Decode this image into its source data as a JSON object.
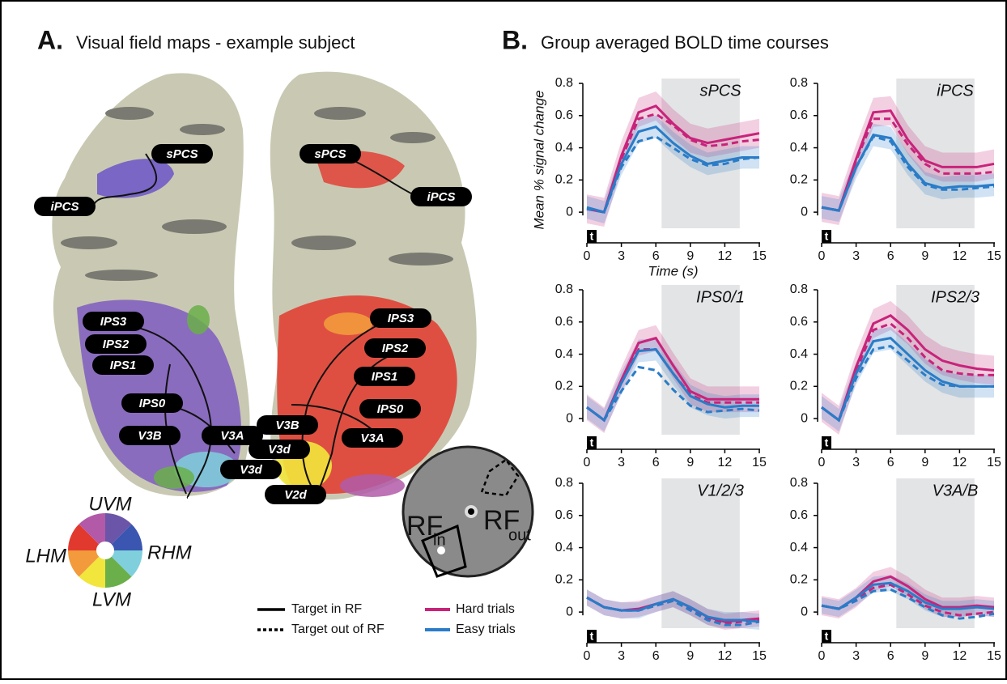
{
  "panel_a": {
    "letter": "A.",
    "title": "Visual field maps - example subject",
    "labels": [
      "sPCS",
      "iPCS",
      "IPS3",
      "IPS2",
      "IPS1",
      "IPS0",
      "V3B",
      "V3A",
      "V3d",
      "sPCS",
      "iPCS",
      "IPS3",
      "IPS2",
      "IPS1",
      "IPS0",
      "V3B",
      "V3d",
      "V3A",
      "V2d"
    ],
    "wheel": [
      "UVM",
      "RHM",
      "LVM",
      "LHM"
    ],
    "rf_in": {
      "main": "RF",
      "sub": "in"
    },
    "rf_out": {
      "main": "RF",
      "sub": "out"
    }
  },
  "panel_b": {
    "letter": "B.",
    "title": "Group averaged BOLD time courses"
  },
  "legend": {
    "solid": "Target in RF",
    "dashed": "Target out of RF",
    "hard": "Hard trials",
    "easy": "Easy trials",
    "hard_color": "#c8237a",
    "easy_color": "#2a7cc7"
  },
  "chart_data": [
    {
      "type": "line",
      "title": "sPCS",
      "ylabel": "Mean % signal change",
      "xlabel": "Time (s)",
      "marker": "t",
      "highlight": [
        6.5,
        13.3
      ],
      "x": [
        0,
        1.5,
        3,
        4.5,
        6,
        7.5,
        9,
        10.5,
        12,
        13.5,
        15
      ],
      "xlim": [
        0,
        15
      ],
      "xticks": [
        0,
        3,
        6,
        9,
        12,
        15
      ],
      "ylim": [
        -0.1,
        0.8
      ],
      "yticks": [
        0,
        0.2,
        0.4,
        0.6,
        0.8
      ],
      "series": [
        {
          "color": "#c8237a",
          "dash": false,
          "error": 0.09,
          "values": [
            0.02,
            0,
            0.35,
            0.62,
            0.66,
            0.55,
            0.46,
            0.43,
            0.45,
            0.47,
            0.49
          ]
        },
        {
          "color": "#c8237a",
          "dash": true,
          "values": [
            0.02,
            0,
            0.33,
            0.58,
            0.61,
            0.54,
            0.45,
            0.41,
            0.42,
            0.44,
            0.45
          ]
        },
        {
          "color": "#2a7cc7",
          "dash": false,
          "error": 0.07,
          "values": [
            0.03,
            0,
            0.3,
            0.5,
            0.53,
            0.43,
            0.35,
            0.3,
            0.32,
            0.34,
            0.34
          ]
        },
        {
          "color": "#2a7cc7",
          "dash": true,
          "values": [
            0.02,
            0,
            0.28,
            0.44,
            0.47,
            0.4,
            0.33,
            0.29,
            0.3,
            0.33,
            0.34
          ]
        }
      ]
    },
    {
      "type": "line",
      "title": "iPCS",
      "marker": "t",
      "highlight": [
        6.5,
        13.3
      ],
      "x": [
        0,
        1.5,
        3,
        4.5,
        6,
        7.5,
        9,
        10.5,
        12,
        13.5,
        15
      ],
      "xlim": [
        0,
        15
      ],
      "xticks": [
        0,
        3,
        6,
        9,
        12,
        15
      ],
      "ylim": [
        -0.1,
        0.8
      ],
      "yticks": [
        0,
        0.2,
        0.4,
        0.6,
        0.8
      ],
      "series": [
        {
          "color": "#c8237a",
          "dash": false,
          "error": 0.09,
          "values": [
            0.03,
            0.01,
            0.33,
            0.62,
            0.63,
            0.45,
            0.32,
            0.28,
            0.28,
            0.28,
            0.3
          ]
        },
        {
          "color": "#c8237a",
          "dash": true,
          "values": [
            0.03,
            0.01,
            0.32,
            0.58,
            0.58,
            0.42,
            0.3,
            0.24,
            0.24,
            0.24,
            0.25
          ]
        },
        {
          "color": "#2a7cc7",
          "dash": false,
          "error": 0.07,
          "values": [
            0.03,
            0.01,
            0.28,
            0.48,
            0.46,
            0.3,
            0.18,
            0.15,
            0.16,
            0.16,
            0.17
          ]
        },
        {
          "color": "#2a7cc7",
          "dash": true,
          "values": [
            0.03,
            0.01,
            0.28,
            0.47,
            0.44,
            0.28,
            0.17,
            0.14,
            0.14,
            0.15,
            0.16
          ]
        }
      ]
    },
    {
      "type": "line",
      "title": "IPS0/1",
      "marker": "t",
      "highlight": [
        6.5,
        13.3
      ],
      "x": [
        0,
        1.5,
        3,
        4.5,
        6,
        7.5,
        9,
        10.5,
        12,
        13.5,
        15
      ],
      "xlim": [
        0,
        15
      ],
      "xticks": [
        0,
        3,
        6,
        9,
        12,
        15
      ],
      "ylim": [
        -0.1,
        0.8
      ],
      "yticks": [
        0,
        0.2,
        0.4,
        0.6,
        0.8
      ],
      "series": [
        {
          "color": "#c8237a",
          "dash": false,
          "error": 0.08,
          "values": [
            0.07,
            -0.01,
            0.24,
            0.47,
            0.5,
            0.33,
            0.17,
            0.12,
            0.12,
            0.12,
            0.12
          ]
        },
        {
          "color": "#c8237a",
          "dash": true,
          "values": [
            0.07,
            -0.01,
            0.22,
            0.43,
            0.43,
            0.28,
            0.15,
            0.1,
            0.1,
            0.1,
            0.1
          ]
        },
        {
          "color": "#2a7cc7",
          "dash": false,
          "error": 0.07,
          "values": [
            0.07,
            -0.01,
            0.22,
            0.42,
            0.43,
            0.28,
            0.14,
            0.09,
            0.07,
            0.08,
            0.08
          ]
        },
        {
          "color": "#2a7cc7",
          "dash": true,
          "values": [
            0.07,
            -0.01,
            0.17,
            0.32,
            0.3,
            0.18,
            0.08,
            0.04,
            0.05,
            0.06,
            0.05
          ]
        }
      ]
    },
    {
      "type": "line",
      "title": "IPS2/3",
      "marker": "t",
      "highlight": [
        6.5,
        13.3
      ],
      "x": [
        0,
        1.5,
        3,
        4.5,
        6,
        7.5,
        9,
        10.5,
        12,
        13.5,
        15
      ],
      "xlim": [
        0,
        15
      ],
      "xticks": [
        0,
        3,
        6,
        9,
        12,
        15
      ],
      "ylim": [
        -0.1,
        0.8
      ],
      "yticks": [
        0,
        0.2,
        0.4,
        0.6,
        0.8
      ],
      "series": [
        {
          "color": "#c8237a",
          "dash": false,
          "error": 0.09,
          "values": [
            0.07,
            -0.01,
            0.32,
            0.59,
            0.64,
            0.55,
            0.43,
            0.36,
            0.33,
            0.31,
            0.3
          ]
        },
        {
          "color": "#c8237a",
          "dash": true,
          "values": [
            0.07,
            -0.01,
            0.3,
            0.55,
            0.59,
            0.5,
            0.38,
            0.3,
            0.28,
            0.27,
            0.27
          ]
        },
        {
          "color": "#2a7cc7",
          "dash": false,
          "error": 0.07,
          "values": [
            0.07,
            -0.01,
            0.28,
            0.48,
            0.5,
            0.4,
            0.3,
            0.23,
            0.2,
            0.2,
            0.2
          ]
        },
        {
          "color": "#2a7cc7",
          "dash": true,
          "values": [
            0.07,
            -0.01,
            0.25,
            0.43,
            0.45,
            0.36,
            0.27,
            0.21,
            0.2,
            0.2,
            0.2
          ]
        }
      ]
    },
    {
      "type": "line",
      "title": "V1/2/3",
      "marker": "t",
      "highlight": [
        6.5,
        13.3
      ],
      "x": [
        0,
        1.5,
        3,
        4.5,
        6,
        7.5,
        9,
        10.5,
        12,
        13.5,
        15
      ],
      "xlim": [
        0,
        15
      ],
      "xticks": [
        0,
        3,
        6,
        9,
        12,
        15
      ],
      "ylim": [
        -0.1,
        0.8
      ],
      "yticks": [
        0,
        0.2,
        0.4,
        0.6,
        0.8
      ],
      "series": [
        {
          "color": "#c8237a",
          "dash": false,
          "error": 0.05,
          "values": [
            0.09,
            0.03,
            0.01,
            0.02,
            0.05,
            0.08,
            0.03,
            -0.03,
            -0.06,
            -0.05,
            -0.04
          ]
        },
        {
          "color": "#c8237a",
          "dash": true,
          "values": [
            0.09,
            0.03,
            0.01,
            0.01,
            0.04,
            0.07,
            0.02,
            -0.04,
            -0.07,
            -0.06,
            -0.05
          ]
        },
        {
          "color": "#2a7cc7",
          "dash": false,
          "error": 0.05,
          "values": [
            0.09,
            0.03,
            0.01,
            0.01,
            0.05,
            0.08,
            0.03,
            -0.03,
            -0.05,
            -0.05,
            -0.06
          ]
        },
        {
          "color": "#2a7cc7",
          "dash": true,
          "values": [
            0.09,
            0.03,
            0.01,
            0.01,
            0.04,
            0.07,
            0.01,
            -0.05,
            -0.08,
            -0.08,
            -0.06
          ]
        }
      ]
    },
    {
      "type": "line",
      "title": "V3A/B",
      "marker": "t",
      "highlight": [
        6.5,
        13.3
      ],
      "x": [
        0,
        1.5,
        3,
        4.5,
        6,
        7.5,
        9,
        10.5,
        12,
        13.5,
        15
      ],
      "xlim": [
        0,
        15
      ],
      "xticks": [
        0,
        3,
        6,
        9,
        12,
        15
      ],
      "ylim": [
        -0.1,
        0.8
      ],
      "yticks": [
        0,
        0.2,
        0.4,
        0.6,
        0.8
      ],
      "series": [
        {
          "color": "#c8237a",
          "dash": false,
          "error": 0.06,
          "values": [
            0.04,
            0.02,
            0.09,
            0.19,
            0.22,
            0.16,
            0.08,
            0.03,
            0.03,
            0.04,
            0.03
          ]
        },
        {
          "color": "#c8237a",
          "dash": true,
          "values": [
            0.04,
            0.02,
            0.08,
            0.15,
            0.17,
            0.11,
            0.04,
            0,
            -0.02,
            -0.01,
            0
          ]
        },
        {
          "color": "#2a7cc7",
          "dash": false,
          "error": 0.05,
          "values": [
            0.04,
            0.02,
            0.09,
            0.17,
            0.18,
            0.13,
            0.06,
            0.02,
            0.02,
            0.03,
            0.02
          ]
        },
        {
          "color": "#2a7cc7",
          "dash": true,
          "values": [
            0.04,
            0.02,
            0.07,
            0.13,
            0.14,
            0.09,
            0.03,
            -0.02,
            -0.04,
            -0.03,
            -0.01
          ]
        }
      ]
    }
  ]
}
